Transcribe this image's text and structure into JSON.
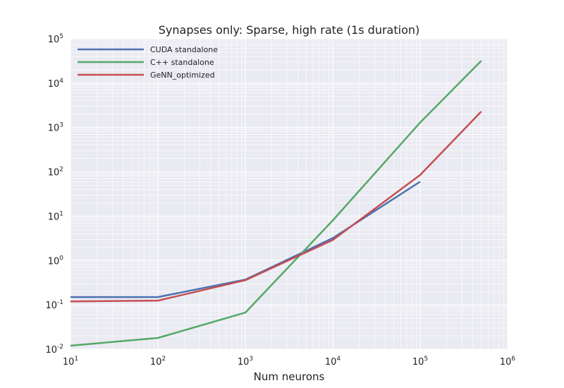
{
  "chart_data": {
    "type": "line",
    "title": "Synapses only: Sparse, high rate (1s duration)",
    "xlabel": "Num neurons",
    "ylabel": "",
    "x_scale": "log",
    "y_scale": "log",
    "xlim": [
      10,
      1000000
    ],
    "ylim": [
      0.01,
      100000
    ],
    "grid": true,
    "legend_position": "upper-left",
    "x_ticks": [
      {
        "base": "10",
        "exp": "1"
      },
      {
        "base": "10",
        "exp": "2"
      },
      {
        "base": "10",
        "exp": "3"
      },
      {
        "base": "10",
        "exp": "4"
      },
      {
        "base": "10",
        "exp": "5"
      },
      {
        "base": "10",
        "exp": "6"
      }
    ],
    "y_ticks": [
      {
        "base": "10",
        "exp": "-2"
      },
      {
        "base": "10",
        "exp": "-1"
      },
      {
        "base": "10",
        "exp": "0"
      },
      {
        "base": "10",
        "exp": "1"
      },
      {
        "base": "10",
        "exp": "2"
      },
      {
        "base": "10",
        "exp": "3"
      },
      {
        "base": "10",
        "exp": "4"
      },
      {
        "base": "10",
        "exp": "5"
      }
    ],
    "series": [
      {
        "name": "CUDA standalone",
        "color": "#4c72b0",
        "x": [
          10,
          100,
          1000,
          10000,
          100000
        ],
        "y": [
          0.15,
          0.15,
          0.37,
          3.2,
          60
        ]
      },
      {
        "name": "C++ standalone",
        "color": "#55a868",
        "x": [
          10,
          100,
          1000,
          10000,
          100000,
          500000
        ],
        "y": [
          0.012,
          0.018,
          0.067,
          8,
          1300,
          32000
        ]
      },
      {
        "name": "GeNN_optimized",
        "color": "#c44e52",
        "x": [
          10,
          100,
          1000,
          10000,
          100000,
          500000
        ],
        "y": [
          0.12,
          0.125,
          0.36,
          2.9,
          85,
          2300
        ]
      }
    ]
  }
}
